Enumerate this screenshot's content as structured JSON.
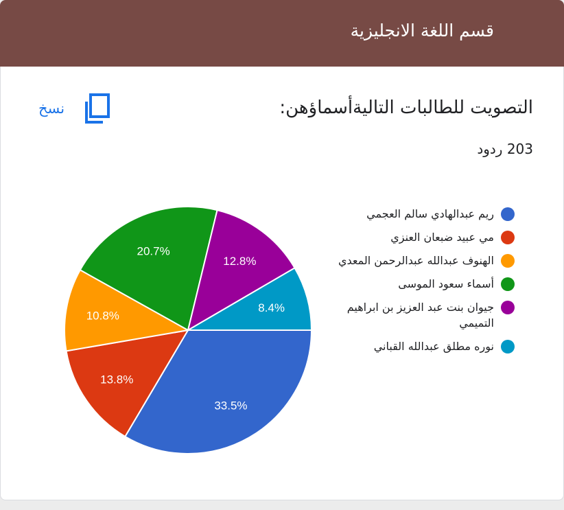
{
  "header": {
    "title": "قسم اللغة الانجليزية"
  },
  "question": {
    "title": "التصويت للطالبات التاليةأسماؤهن:",
    "responses": "203 ردود",
    "copy_label": "نسخ",
    "copy_icon": "copy-icon"
  },
  "colors": {
    "header": "#774a45",
    "link": "#1a73e8"
  },
  "chart_data": {
    "type": "pie",
    "title": "",
    "total_responses": 203,
    "slices": [
      {
        "label": "ريم عبدالهادي سالم العجمي",
        "value": 33.5,
        "display": "33.5%",
        "color": "#3366cc"
      },
      {
        "label": "مي عبيد ضبعان العنزي",
        "value": 13.8,
        "display": "13.8%",
        "color": "#dc3912"
      },
      {
        "label": "الهنوف عبدالله عبدالرحمن المعدي",
        "value": 10.8,
        "display": "10.8%",
        "color": "#ff9900"
      },
      {
        "label": "أسماء سعود الموسى",
        "value": 20.7,
        "display": "20.7%",
        "color": "#109618"
      },
      {
        "label": "جيوان بنت عبد العزيز بن ابراهيم التميمي",
        "value": 12.8,
        "display": "12.8%",
        "color": "#990099"
      },
      {
        "label": "نوره مطلق عبدالله القباني",
        "value": 8.4,
        "display": "8.4%",
        "color": "#0099c6"
      }
    ],
    "legend_position": "right"
  }
}
